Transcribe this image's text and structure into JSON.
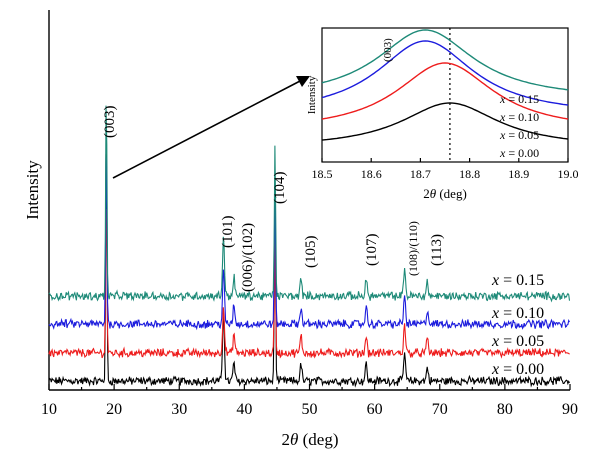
{
  "chart_data": [
    {
      "type": "line",
      "xlabel_prefix": "2",
      "xlabel_theta": "θ",
      "xlabel_suffix": " (deg)",
      "ylabel": "Intensity",
      "xlim": [
        10,
        90
      ],
      "xticks": [
        10,
        20,
        30,
        40,
        50,
        60,
        70,
        80,
        90
      ],
      "yticks_shown": false,
      "series": [
        {
          "name": "x = 0.00",
          "x_var": "x",
          "value_text": " = 0.00",
          "color": "#000000",
          "offset": 0
        },
        {
          "name": "x = 0.05",
          "x_var": "x",
          "value_text": " = 0.05",
          "color": "#ee1c1c",
          "offset": 1
        },
        {
          "name": "x = 0.10",
          "x_var": "x",
          "value_text": " = 0.10",
          "color": "#1c1cdd",
          "offset": 2
        },
        {
          "name": "x = 0.15",
          "x_var": "x",
          "value_text": " = 0.15",
          "color": "#1e8a78",
          "offset": 3
        }
      ],
      "peaks": [
        {
          "label": "(003)",
          "x": 18.8,
          "rel_height": 100
        },
        {
          "label": "(101)",
          "x": 36.8,
          "rel_height": 30
        },
        {
          "label": "(006)/(102)",
          "x": 38.4,
          "rel_height": 8
        },
        {
          "label": "(104)",
          "x": 44.7,
          "rel_height": 75
        },
        {
          "label": "(105)",
          "x": 48.7,
          "rel_height": 7
        },
        {
          "label": "(107)",
          "x": 58.7,
          "rel_height": 7
        },
        {
          "label": "(108)/(110)",
          "x": 64.6,
          "rel_height": 12
        },
        {
          "label": "(113)",
          "x": 68.1,
          "rel_height": 6
        }
      ]
    },
    {
      "type": "line",
      "role": "inset",
      "xlabel_prefix": "2",
      "xlabel_theta": "θ",
      "xlabel_suffix": " (deg)",
      "ylabel": "Intensity",
      "xlim": [
        18.5,
        19.0
      ],
      "xticks": [
        "18.5",
        "18.6",
        "18.7",
        "18.8",
        "18.9",
        "19.0"
      ],
      "peak_label": "(003)",
      "reference_line_x": 18.76,
      "series": [
        {
          "name": "x = 0.15",
          "x_var": "x",
          "value_text": " = 0.15",
          "color": "#1e8a78",
          "peak_x": 18.71
        },
        {
          "name": "x = 0.10",
          "x_var": "x",
          "value_text": " = 0.10",
          "color": "#1c1cdd",
          "peak_x": 18.71
        },
        {
          "name": "x = 0.05",
          "x_var": "x",
          "value_text": " = 0.05",
          "color": "#ee1c1c",
          "peak_x": 18.75
        },
        {
          "name": "x = 0.00",
          "x_var": "x",
          "value_text": " = 0.00",
          "color": "#000000",
          "peak_x": 18.76
        }
      ]
    }
  ]
}
